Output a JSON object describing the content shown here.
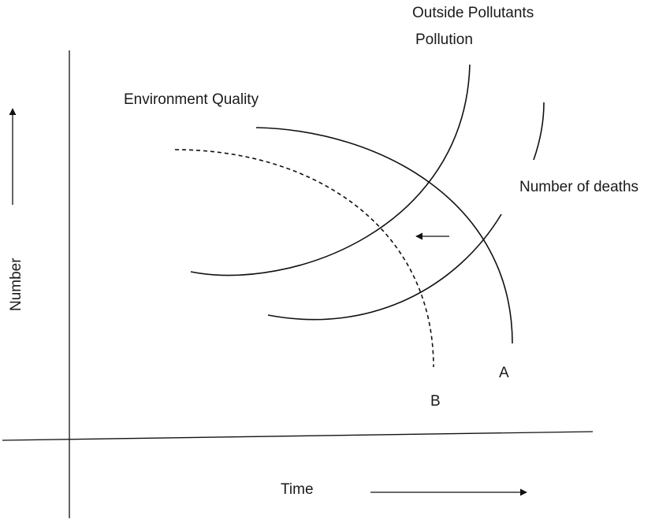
{
  "labels": {
    "outside_pollutants": "Outside Pollutants",
    "pollution": "Pollution",
    "environment_quality": "Environment Quality",
    "number_of_deaths": "Number of deaths",
    "y_axis": "Number",
    "x_axis": "Time",
    "point_a": "A",
    "point_b": "B"
  },
  "colors": {
    "line": "#111111",
    "text": "#1a1a1a",
    "background": "#ffffff"
  }
}
